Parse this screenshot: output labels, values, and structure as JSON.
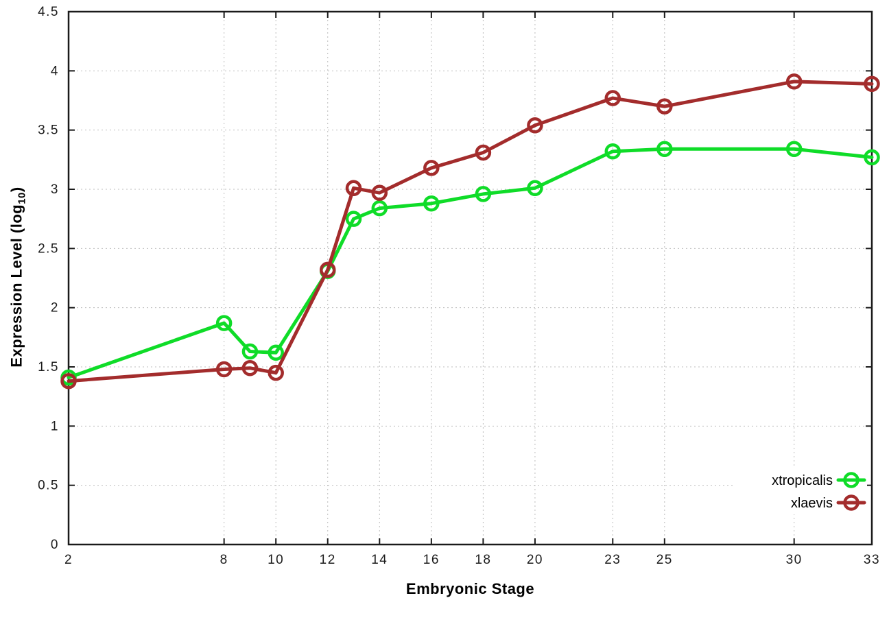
{
  "chart_data": {
    "type": "line",
    "title": "",
    "xlabel": "Embryonic Stage",
    "ylabel": {
      "pre": "Expression Level (log",
      "sub": "10",
      "post": ")"
    },
    "xlim": [
      2,
      33
    ],
    "ylim": [
      0,
      4.5
    ],
    "grid": true,
    "grid_color": "#bcbcbc",
    "border_color": "#1a1a1a",
    "tick_label_color": "#1c1c1c",
    "x_ticks": [
      {
        "v": 2,
        "label": "2"
      },
      {
        "v": 8,
        "label": "8"
      },
      {
        "v": 10,
        "label": "10"
      },
      {
        "v": 12,
        "label": "12"
      },
      {
        "v": 14,
        "label": "14"
      },
      {
        "v": 16,
        "label": "16"
      },
      {
        "v": 18,
        "label": "18"
      },
      {
        "v": 20,
        "label": "20"
      },
      {
        "v": 23,
        "label": "23"
      },
      {
        "v": 25,
        "label": "25"
      },
      {
        "v": 30,
        "label": "30"
      },
      {
        "v": 33,
        "label": "33"
      }
    ],
    "y_ticks": [
      {
        "v": 0,
        "label": "0"
      },
      {
        "v": 0.5,
        "label": "0.5"
      },
      {
        "v": 1,
        "label": "1"
      },
      {
        "v": 1.5,
        "label": "1.5"
      },
      {
        "v": 2,
        "label": "2"
      },
      {
        "v": 2.5,
        "label": "2.5"
      },
      {
        "v": 3,
        "label": "3"
      },
      {
        "v": 3.5,
        "label": "3.5"
      },
      {
        "v": 4,
        "label": "4"
      },
      {
        "v": 4.5,
        "label": "4.5"
      }
    ],
    "x": [
      2,
      8,
      9,
      10,
      12,
      13,
      14,
      16,
      18,
      20,
      23,
      25,
      30,
      33
    ],
    "series": [
      {
        "name": "xtropicalis",
        "color": "#0fdc28",
        "values": [
          1.41,
          1.87,
          1.63,
          1.62,
          2.31,
          2.75,
          2.84,
          2.88,
          2.96,
          3.01,
          3.32,
          3.34,
          3.34,
          3.27
        ]
      },
      {
        "name": "xlaevis",
        "color": "#a32c2c",
        "values": [
          1.38,
          1.48,
          1.49,
          1.45,
          2.32,
          3.01,
          2.97,
          3.18,
          3.31,
          3.54,
          3.77,
          3.7,
          3.91,
          3.89
        ]
      }
    ],
    "legend": {
      "position": "inside-bottom-right",
      "entries": [
        "xtropicalis",
        "xlaevis"
      ]
    }
  }
}
